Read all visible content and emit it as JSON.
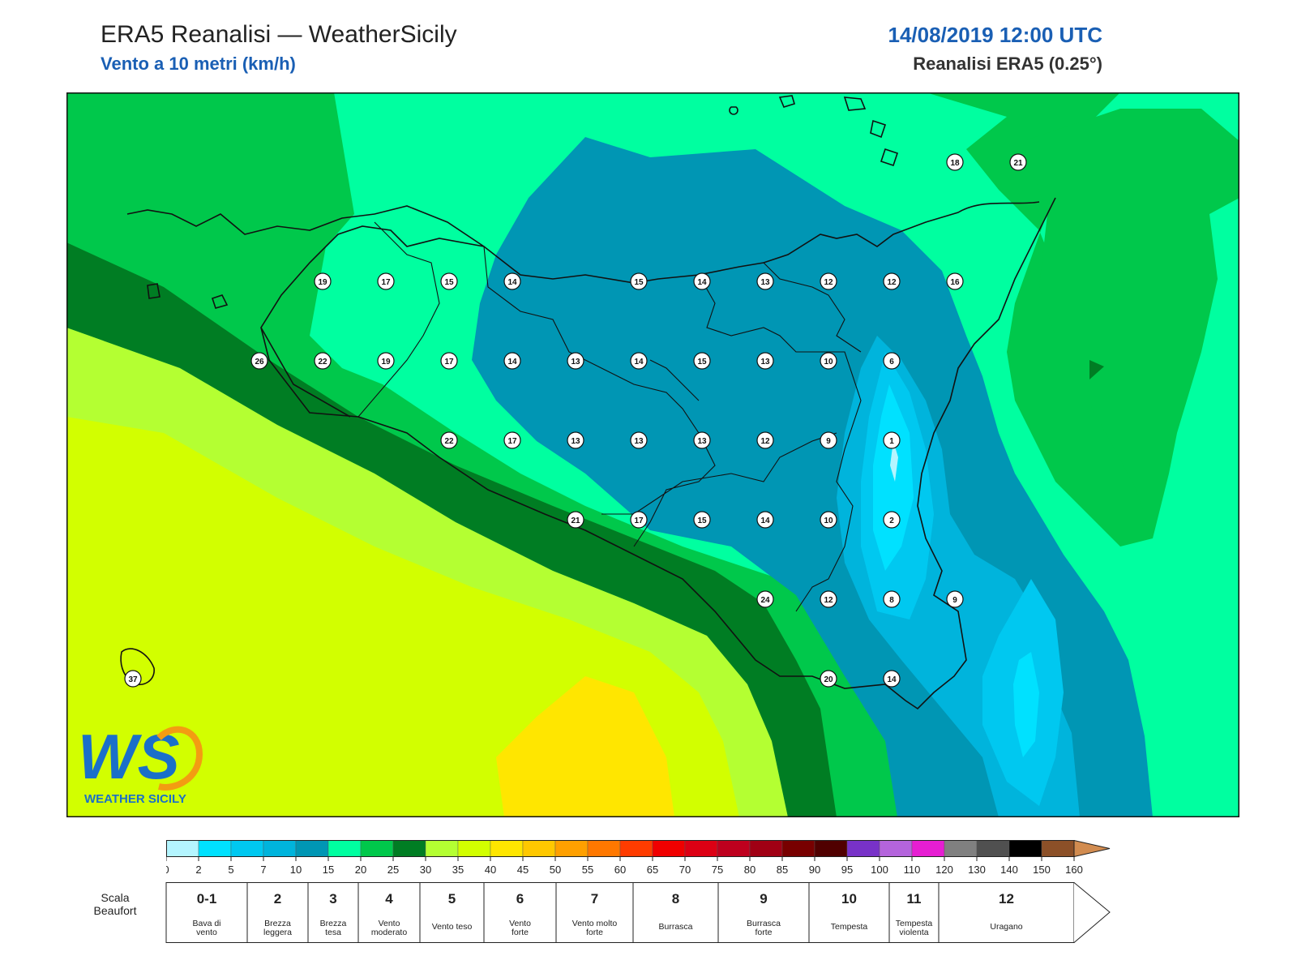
{
  "header": {
    "title": "ERA5 Reanalisi — WeatherSicily",
    "subtitle": "Vento a 10 metri (km/h)",
    "datetime": "14/08/2019 12:00 UTC",
    "source": "Reanalisi ERA5 (0.25°)"
  },
  "logo": {
    "text": "WS",
    "name": "WEATHER SICILY"
  },
  "colors": {
    "c0": "#b4f5ff",
    "c2": "#00e1ff",
    "c5": "#00c8f0",
    "c7": "#00b4dc",
    "c10": "#0096b4",
    "c15": "#00ffa0",
    "c20": "#00c84b",
    "c25": "#007d23",
    "c30": "#b4ff32",
    "c35": "#d2ff00",
    "c40": "#ffe600",
    "c45": "#ffc800",
    "c50": "#ffa000",
    "c55": "#ff7800",
    "c60": "#ff3c00",
    "c65": "#f00000",
    "c70": "#dc0014",
    "c75": "#be001e",
    "c80": "#a00014",
    "c85": "#780000",
    "c90": "#500000",
    "c95": "#7832c8",
    "c100": "#b464dc",
    "c110": "#e61ed2",
    "c120": "#808080",
    "c130": "#505050",
    "c140": "#000000",
    "c150": "#8c5028",
    "c160": "#d28c50"
  },
  "colorbar": {
    "ticks": [
      "0",
      "2",
      "5",
      "7",
      "10",
      "15",
      "20",
      "25",
      "30",
      "35",
      "40",
      "45",
      "50",
      "55",
      "60",
      "65",
      "70",
      "75",
      "80",
      "85",
      "90",
      "95",
      "100",
      "110",
      "120",
      "130",
      "140",
      "150",
      "160"
    ]
  },
  "beaufort": {
    "label_line1": "Scala",
    "label_line2": "Beaufort",
    "classes": [
      {
        "num": "0-1",
        "desc1": "Bava di",
        "desc2": "vento"
      },
      {
        "num": "2",
        "desc1": "Brezza",
        "desc2": "leggera"
      },
      {
        "num": "3",
        "desc1": "Brezza",
        "desc2": "tesa"
      },
      {
        "num": "4",
        "desc1": "Vento",
        "desc2": "moderato"
      },
      {
        "num": "5",
        "desc1": "Vento teso",
        "desc2": ""
      },
      {
        "num": "6",
        "desc1": "Vento",
        "desc2": "forte"
      },
      {
        "num": "7",
        "desc1": "Vento molto",
        "desc2": "forte"
      },
      {
        "num": "8",
        "desc1": "Burrasca",
        "desc2": ""
      },
      {
        "num": "9",
        "desc1": "Burrasca",
        "desc2": "forte"
      },
      {
        "num": "10",
        "desc1": "Tempesta",
        "desc2": ""
      },
      {
        "num": "11",
        "desc1": "Tempesta",
        "desc2": "violenta"
      },
      {
        "num": "12",
        "desc1": "Uragano",
        "desc2": ""
      }
    ]
  },
  "wind_values": [
    {
      "v": "19",
      "c": 4,
      "r": 3
    },
    {
      "v": "17",
      "c": 5,
      "r": 3
    },
    {
      "v": "15",
      "c": 6,
      "r": 3
    },
    {
      "v": "14",
      "c": 7,
      "r": 3
    },
    {
      "v": "15",
      "c": 9,
      "r": 3
    },
    {
      "v": "14",
      "c": 10,
      "r": 3
    },
    {
      "v": "13",
      "c": 11,
      "r": 3
    },
    {
      "v": "12",
      "c": 12,
      "r": 3
    },
    {
      "v": "12",
      "c": 13,
      "r": 3
    },
    {
      "v": "16",
      "c": 14,
      "r": 3
    },
    {
      "v": "18",
      "c": 14,
      "r": 1.5
    },
    {
      "v": "21",
      "c": 15,
      "r": 1.5
    },
    {
      "v": "26",
      "c": 3,
      "r": 4
    },
    {
      "v": "22",
      "c": 4,
      "r": 4
    },
    {
      "v": "19",
      "c": 5,
      "r": 4
    },
    {
      "v": "17",
      "c": 6,
      "r": 4
    },
    {
      "v": "14",
      "c": 7,
      "r": 4
    },
    {
      "v": "13",
      "c": 8,
      "r": 4
    },
    {
      "v": "14",
      "c": 9,
      "r": 4
    },
    {
      "v": "15",
      "c": 10,
      "r": 4
    },
    {
      "v": "13",
      "c": 11,
      "r": 4
    },
    {
      "v": "10",
      "c": 12,
      "r": 4
    },
    {
      "v": "6",
      "c": 13,
      "r": 4
    },
    {
      "v": "22",
      "c": 6,
      "r": 5
    },
    {
      "v": "17",
      "c": 7,
      "r": 5
    },
    {
      "v": "13",
      "c": 8,
      "r": 5
    },
    {
      "v": "13",
      "c": 9,
      "r": 5
    },
    {
      "v": "13",
      "c": 10,
      "r": 5
    },
    {
      "v": "12",
      "c": 11,
      "r": 5
    },
    {
      "v": "9",
      "c": 12,
      "r": 5
    },
    {
      "v": "1",
      "c": 13,
      "r": 5
    },
    {
      "v": "21",
      "c": 8,
      "r": 6
    },
    {
      "v": "17",
      "c": 9,
      "r": 6
    },
    {
      "v": "15",
      "c": 10,
      "r": 6
    },
    {
      "v": "14",
      "c": 11,
      "r": 6
    },
    {
      "v": "10",
      "c": 12,
      "r": 6
    },
    {
      "v": "2",
      "c": 13,
      "r": 6
    },
    {
      "v": "24",
      "c": 11,
      "r": 7
    },
    {
      "v": "12",
      "c": 12,
      "r": 7
    },
    {
      "v": "8",
      "c": 13,
      "r": 7
    },
    {
      "v": "9",
      "c": 14,
      "r": 7
    },
    {
      "v": "20",
      "c": 12,
      "r": 8
    },
    {
      "v": "14",
      "c": 13,
      "r": 8
    },
    {
      "v": "37",
      "c": 1,
      "r": 8
    }
  ]
}
